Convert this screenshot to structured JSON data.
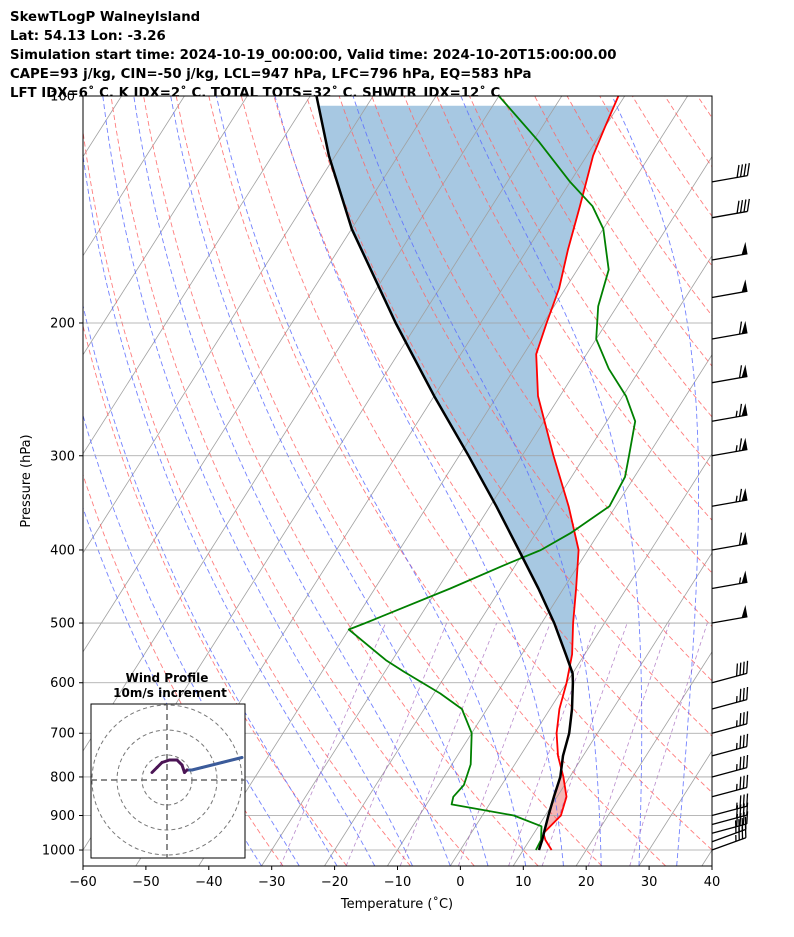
{
  "header": {
    "line1": "SkewTLogP WalneyIsland",
    "line2": "Lat: 54.13   Lon: -3.26",
    "line3": "Simulation start time: 2024-10-19_00:00:00, Valid time: 2024-10-20T15:00:00.00",
    "line4": "CAPE=93 j/kg, CIN=-50 j/kg, LCL=947 hPa, LFC=796 hPa, EQ=583 hPa",
    "line5": "LFT IDX=6˚ C, K IDX=2˚ C, TOTAL TOTS=32˚ C, SHWTR_IDX=12˚ C"
  },
  "colors": {
    "temperature": "#ff0000",
    "dewpoint": "#008000",
    "parcel": "#000000",
    "cape_fill": "#a2c5e0",
    "cin_fill": "#f3b2b2",
    "isotherm": "#a0a0a0",
    "dry_adiabat": "#ff6666",
    "moist_adiabat": "#5a6cff",
    "mixing_ratio": "#6a6aff",
    "hodograph_low": "#3b5b9a",
    "hodograph_high": "#4b1555"
  },
  "chart_data": {
    "type": "skewt",
    "xlabel": "Temperature (˚C)",
    "ylabel": "Pressure (hPa)",
    "xlim": [
      -60,
      40
    ],
    "ylim": [
      1050,
      100
    ],
    "yscale": "log",
    "x_ticks": [
      -60,
      -50,
      -40,
      -30,
      -20,
      -10,
      0,
      10,
      20,
      30,
      40
    ],
    "y_ticks": [
      1000,
      900,
      800,
      700,
      600,
      500,
      400,
      300,
      200,
      100
    ],
    "grid": true,
    "temperature_profile": [
      {
        "p": 1000,
        "t": 14.5
      },
      {
        "p": 970,
        "t": 12.5
      },
      {
        "p": 950,
        "t": 11.5
      },
      {
        "p": 900,
        "t": 12.5
      },
      {
        "p": 850,
        "t": 11.5
      },
      {
        "p": 800,
        "t": 9.0
      },
      {
        "p": 750,
        "t": 6.0
      },
      {
        "p": 700,
        "t": 3.5
      },
      {
        "p": 650,
        "t": 1.5
      },
      {
        "p": 600,
        "t": 0.0
      },
      {
        "p": 550,
        "t": -2.0
      },
      {
        "p": 500,
        "t": -5.0
      },
      {
        "p": 450,
        "t": -8.0
      },
      {
        "p": 400,
        "t": -11.5
      },
      {
        "p": 350,
        "t": -17.5
      },
      {
        "p": 300,
        "t": -25.0
      },
      {
        "p": 250,
        "t": -33.5
      },
      {
        "p": 220,
        "t": -38.0
      },
      {
        "p": 200,
        "t": -39.5
      },
      {
        "p": 180,
        "t": -41.0
      },
      {
        "p": 160,
        "t": -43.5
      },
      {
        "p": 140,
        "t": -46.0
      },
      {
        "p": 120,
        "t": -49.0
      },
      {
        "p": 110,
        "t": -50.0
      },
      {
        "p": 100,
        "t": -51.0
      }
    ],
    "dewpoint_profile": [
      {
        "p": 1000,
        "t": 12.0
      },
      {
        "p": 970,
        "t": 11.8
      },
      {
        "p": 930,
        "t": 10.5
      },
      {
        "p": 900,
        "t": 5.0
      },
      {
        "p": 870,
        "t": -6.0
      },
      {
        "p": 850,
        "t": -6.5
      },
      {
        "p": 820,
        "t": -6.0
      },
      {
        "p": 770,
        "t": -7.0
      },
      {
        "p": 700,
        "t": -10.0
      },
      {
        "p": 650,
        "t": -14.0
      },
      {
        "p": 620,
        "t": -19.0
      },
      {
        "p": 580,
        "t": -27.0
      },
      {
        "p": 560,
        "t": -31.0
      },
      {
        "p": 510,
        "t": -40.0
      },
      {
        "p": 500,
        "t": -38.0
      },
      {
        "p": 450,
        "t": -28.0
      },
      {
        "p": 420,
        "t": -22.0
      },
      {
        "p": 400,
        "t": -17.5
      },
      {
        "p": 380,
        "t": -14.5
      },
      {
        "p": 350,
        "t": -11.0
      },
      {
        "p": 320,
        "t": -11.5
      },
      {
        "p": 300,
        "t": -13.0
      },
      {
        "p": 270,
        "t": -15.5
      },
      {
        "p": 250,
        "t": -19.5
      },
      {
        "p": 230,
        "t": -25.0
      },
      {
        "p": 210,
        "t": -30.0
      },
      {
        "p": 190,
        "t": -33.0
      },
      {
        "p": 170,
        "t": -35.0
      },
      {
        "p": 150,
        "t": -40.0
      },
      {
        "p": 140,
        "t": -44.0
      },
      {
        "p": 130,
        "t": -50.0
      },
      {
        "p": 115,
        "t": -59.0
      },
      {
        "p": 100,
        "t": -70.0
      }
    ],
    "parcel_profile": [
      {
        "p": 1000,
        "t": 12.5
      },
      {
        "p": 970,
        "t": 12.0
      },
      {
        "p": 947,
        "t": 11.5
      },
      {
        "p": 900,
        "t": 10.5
      },
      {
        "p": 850,
        "t": 9.5
      },
      {
        "p": 800,
        "t": 8.5
      },
      {
        "p": 750,
        "t": 6.8
      },
      {
        "p": 700,
        "t": 5.5
      },
      {
        "p": 650,
        "t": 3.5
      },
      {
        "p": 600,
        "t": 1.0
      },
      {
        "p": 583,
        "t": 0.0
      },
      {
        "p": 550,
        "t": -3.0
      },
      {
        "p": 500,
        "t": -8.0
      },
      {
        "p": 450,
        "t": -14.0
      },
      {
        "p": 400,
        "t": -21.0
      },
      {
        "p": 350,
        "t": -29.0
      },
      {
        "p": 300,
        "t": -38.5
      },
      {
        "p": 250,
        "t": -50.0
      },
      {
        "p": 200,
        "t": -63.5
      },
      {
        "p": 150,
        "t": -80.0
      },
      {
        "p": 120,
        "t": -91.0
      },
      {
        "p": 100,
        "t": -99.0
      }
    ],
    "wind_barbs": [
      {
        "p": 1000,
        "speed_kt": 35,
        "dir": 250
      },
      {
        "p": 975,
        "speed_kt": 40,
        "dir": 250
      },
      {
        "p": 950,
        "speed_kt": 40,
        "dir": 255
      },
      {
        "p": 925,
        "speed_kt": 40,
        "dir": 255
      },
      {
        "p": 900,
        "speed_kt": 35,
        "dir": 255
      },
      {
        "p": 850,
        "speed_kt": 35,
        "dir": 255
      },
      {
        "p": 800,
        "speed_kt": 35,
        "dir": 255
      },
      {
        "p": 750,
        "speed_kt": 35,
        "dir": 255
      },
      {
        "p": 700,
        "speed_kt": 35,
        "dir": 255
      },
      {
        "p": 650,
        "speed_kt": 35,
        "dir": 255
      },
      {
        "p": 600,
        "speed_kt": 40,
        "dir": 255
      },
      {
        "p": 500,
        "speed_kt": 50,
        "dir": 260
      },
      {
        "p": 450,
        "speed_kt": 55,
        "dir": 260
      },
      {
        "p": 400,
        "speed_kt": 60,
        "dir": 260
      },
      {
        "p": 350,
        "speed_kt": 65,
        "dir": 260
      },
      {
        "p": 300,
        "speed_kt": 65,
        "dir": 260
      },
      {
        "p": 270,
        "speed_kt": 65,
        "dir": 260
      },
      {
        "p": 240,
        "speed_kt": 60,
        "dir": 260
      },
      {
        "p": 210,
        "speed_kt": 60,
        "dir": 260
      },
      {
        "p": 185,
        "speed_kt": 50,
        "dir": 260
      },
      {
        "p": 165,
        "speed_kt": 50,
        "dir": 260
      },
      {
        "p": 145,
        "speed_kt": 40,
        "dir": 260
      },
      {
        "p": 130,
        "speed_kt": 40,
        "dir": 260
      }
    ],
    "hodograph": {
      "title": "Wind Profile",
      "subtitle": "10m/s increment",
      "ring_step_ms": 10,
      "rings": 3,
      "points": [
        {
          "u": 30,
          "v": 9
        },
        {
          "u": 22,
          "v": 7
        },
        {
          "u": 14,
          "v": 5
        },
        {
          "u": 10,
          "v": 4
        },
        {
          "u": 8,
          "v": 4
        },
        {
          "u": 7,
          "v": 3
        },
        {
          "u": 6,
          "v": 6
        },
        {
          "u": 4,
          "v": 8
        },
        {
          "u": 1,
          "v": 8
        },
        {
          "u": -2,
          "v": 7
        },
        {
          "u": -4,
          "v": 5
        },
        {
          "u": -6,
          "v": 3
        }
      ]
    }
  }
}
